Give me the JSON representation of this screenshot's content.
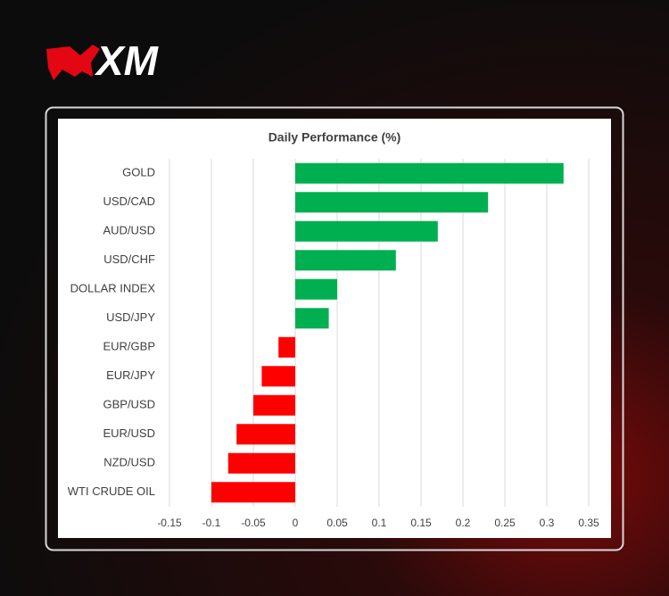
{
  "brand": "XM",
  "chart_data": {
    "type": "bar",
    "orientation": "horizontal",
    "title": "Daily Performance (%)",
    "categories": [
      "GOLD",
      "USD/CAD",
      "AUD/USD",
      "USD/CHF",
      "DOLLAR INDEX",
      "USD/JPY",
      "EUR/GBP",
      "EUR/JPY",
      "GBP/USD",
      "EUR/USD",
      "NZD/USD",
      "WTI CRUDE OIL"
    ],
    "values": [
      0.32,
      0.23,
      0.17,
      0.12,
      0.05,
      0.04,
      -0.02,
      -0.04,
      -0.05,
      -0.07,
      -0.08,
      -0.1
    ],
    "colors": {
      "positive": "#00b050",
      "negative": "#ff0000"
    },
    "xlim": [
      -0.15,
      0.35
    ],
    "xticks": [
      -0.15,
      -0.1,
      -0.05,
      0,
      0.05,
      0.1,
      0.15,
      0.2,
      0.25,
      0.3,
      0.35
    ],
    "grid": true
  }
}
